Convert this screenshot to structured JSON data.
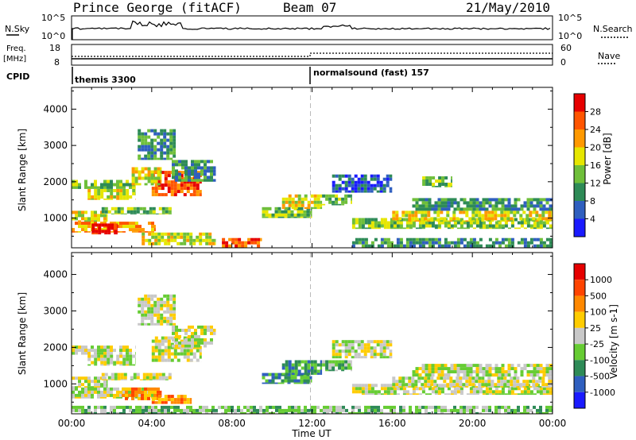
{
  "header": {
    "station": "Prince George (fitACF)",
    "beam": "Beam 07",
    "date": "21/May/2010"
  },
  "ancillary": {
    "nsky_label": "N.Sky",
    "nsky_ticks": [
      "10^5",
      "10^0"
    ],
    "nsearch_label": "N.Search",
    "nsearch_ticks": [
      "10^5",
      "10^0"
    ],
    "freq_label": "Freq.",
    "freq_unit": "[MHz]",
    "freq_ticks": [
      "18",
      "8"
    ],
    "nave_label": "Nave",
    "nave_ticks": [
      "60",
      "0"
    ],
    "cpid_label": "CPID",
    "cpid_segments": [
      {
        "name": "themis 3300",
        "start": "00:00"
      },
      {
        "name": "normalsound (fast) 157",
        "start": "12:00"
      }
    ]
  },
  "chart_data": [
    {
      "type": "heatmap",
      "name": "power",
      "ylabel": "Slant Range [km]",
      "yticks": [
        1000,
        2000,
        3000,
        4000
      ],
      "ylim": [
        180,
        4600
      ],
      "xlim_hours": [
        0,
        24
      ],
      "xticks": [
        "00:00",
        "04:00",
        "08:00",
        "12:00",
        "16:00",
        "20:00",
        "00:00"
      ],
      "colorbar": {
        "label": "Power [dB]",
        "ticks": [
          "4",
          "8",
          "12",
          "16",
          "20",
          "24",
          "28"
        ],
        "colors": [
          "#1a1aff",
          "#2f5fbf",
          "#2e8b57",
          "#6fbf3a",
          "#e6e600",
          "#ff9900",
          "#ff5500",
          "#e60000"
        ]
      },
      "bands": [
        {
          "t0": 0.0,
          "t1": 3.2,
          "r0": 1800,
          "r1": 2050,
          "level": 3
        },
        {
          "t0": 0.8,
          "t1": 3.2,
          "r0": 1500,
          "r1": 1800,
          "level": 4
        },
        {
          "t0": 0.0,
          "t1": 1.8,
          "r0": 900,
          "r1": 1200,
          "level": 4
        },
        {
          "t0": 1.5,
          "t1": 5.0,
          "r0": 1100,
          "r1": 1300,
          "level": 3
        },
        {
          "t0": 0.0,
          "t1": 4.2,
          "r0": 600,
          "r1": 900,
          "level": 5
        },
        {
          "t0": 1.0,
          "t1": 2.3,
          "r0": 550,
          "r1": 850,
          "level": 7
        },
        {
          "t0": 3.5,
          "t1": 7.2,
          "r0": 250,
          "r1": 600,
          "level": 4
        },
        {
          "t0": 4.0,
          "t1": 6.5,
          "r0": 1600,
          "r1": 2300,
          "level": 6
        },
        {
          "t0": 3.0,
          "t1": 4.5,
          "r0": 1900,
          "r1": 2400,
          "level": 4
        },
        {
          "t0": 3.3,
          "t1": 5.2,
          "r0": 2600,
          "r1": 3450,
          "level": 2
        },
        {
          "t0": 5.0,
          "t1": 7.2,
          "r0": 2000,
          "r1": 2600,
          "level": 2
        },
        {
          "t0": 7.5,
          "t1": 9.5,
          "r0": 180,
          "r1": 450,
          "level": 6
        },
        {
          "t0": 9.5,
          "t1": 12.0,
          "r0": 1000,
          "r1": 1300,
          "level": 3
        },
        {
          "t0": 10.5,
          "t1": 12.5,
          "r0": 1250,
          "r1": 1650,
          "level": 4
        },
        {
          "t0": 12.5,
          "t1": 14.0,
          "r0": 1350,
          "r1": 1650,
          "level": 3
        },
        {
          "t0": 14.0,
          "t1": 24.0,
          "r0": 700,
          "r1": 1000,
          "level": 3
        },
        {
          "t0": 16.0,
          "t1": 24.0,
          "r0": 900,
          "r1": 1200,
          "level": 4
        },
        {
          "t0": 17.0,
          "t1": 24.0,
          "r0": 1200,
          "r1": 1550,
          "level": 2
        },
        {
          "t0": 13.0,
          "t1": 16.0,
          "r0": 1700,
          "r1": 2200,
          "level": 1
        },
        {
          "t0": 17.5,
          "t1": 19.0,
          "r0": 1850,
          "r1": 2150,
          "level": 3
        },
        {
          "t0": 14.0,
          "t1": 24.0,
          "r0": 180,
          "r1": 450,
          "level": 2
        }
      ]
    },
    {
      "type": "heatmap",
      "name": "velocity",
      "ylabel": "Slant Range [km]",
      "yticks": [
        1000,
        2000,
        3000,
        4000
      ],
      "ylim": [
        180,
        4600
      ],
      "xlim_hours": [
        0,
        24
      ],
      "xticks": [
        "00:00",
        "04:00",
        "08:00",
        "12:00",
        "16:00",
        "20:00",
        "00:00"
      ],
      "xlabel": "Time UT",
      "colorbar": {
        "label": "Velocity [m s-1]",
        "ticks": [
          "1000",
          "500",
          "100",
          "25",
          "-25",
          "-100",
          "-500",
          "-1000"
        ],
        "colors": [
          "#1a1aff",
          "#2f5fbf",
          "#2e8b57",
          "#66cc33",
          "#c8c8c8",
          "#ffcc00",
          "#ff8800",
          "#ff4400",
          "#e60000"
        ]
      },
      "bands": [
        {
          "t0": 0.0,
          "t1": 3.2,
          "r0": 1800,
          "r1": 2050,
          "level": 4
        },
        {
          "t0": 0.8,
          "t1": 3.2,
          "r0": 1500,
          "r1": 1800,
          "level": 4
        },
        {
          "t0": 0.0,
          "t1": 1.8,
          "r0": 900,
          "r1": 1200,
          "level": 4
        },
        {
          "t0": 1.5,
          "t1": 5.0,
          "r0": 1100,
          "r1": 1300,
          "level": 4
        },
        {
          "t0": 0.0,
          "t1": 4.2,
          "r0": 600,
          "r1": 900,
          "level": 4
        },
        {
          "t0": 2.5,
          "t1": 4.5,
          "r0": 550,
          "r1": 900,
          "level": 6
        },
        {
          "t0": 4.0,
          "t1": 6.0,
          "r0": 450,
          "r1": 700,
          "level": 6
        },
        {
          "t0": 4.0,
          "t1": 6.5,
          "r0": 1600,
          "r1": 2300,
          "level": 4
        },
        {
          "t0": 3.3,
          "t1": 5.2,
          "r0": 2600,
          "r1": 3450,
          "level": 4
        },
        {
          "t0": 5.0,
          "t1": 7.2,
          "r0": 2000,
          "r1": 2600,
          "level": 4
        },
        {
          "t0": 9.5,
          "t1": 12.0,
          "r0": 1000,
          "r1": 1300,
          "level": 2
        },
        {
          "t0": 10.5,
          "t1": 12.5,
          "r0": 1250,
          "r1": 1650,
          "level": 2
        },
        {
          "t0": 12.5,
          "t1": 14.0,
          "r0": 1350,
          "r1": 1650,
          "level": 3
        },
        {
          "t0": 14.0,
          "t1": 24.0,
          "r0": 700,
          "r1": 1000,
          "level": 4
        },
        {
          "t0": 16.0,
          "t1": 24.0,
          "r0": 900,
          "r1": 1200,
          "level": 4
        },
        {
          "t0": 17.0,
          "t1": 24.0,
          "r0": 1200,
          "r1": 1550,
          "level": 4
        },
        {
          "t0": 13.0,
          "t1": 16.0,
          "r0": 1700,
          "r1": 2200,
          "level": 4
        },
        {
          "t0": 0.0,
          "t1": 24.0,
          "r0": 180,
          "r1": 400,
          "level": 3
        }
      ]
    }
  ]
}
